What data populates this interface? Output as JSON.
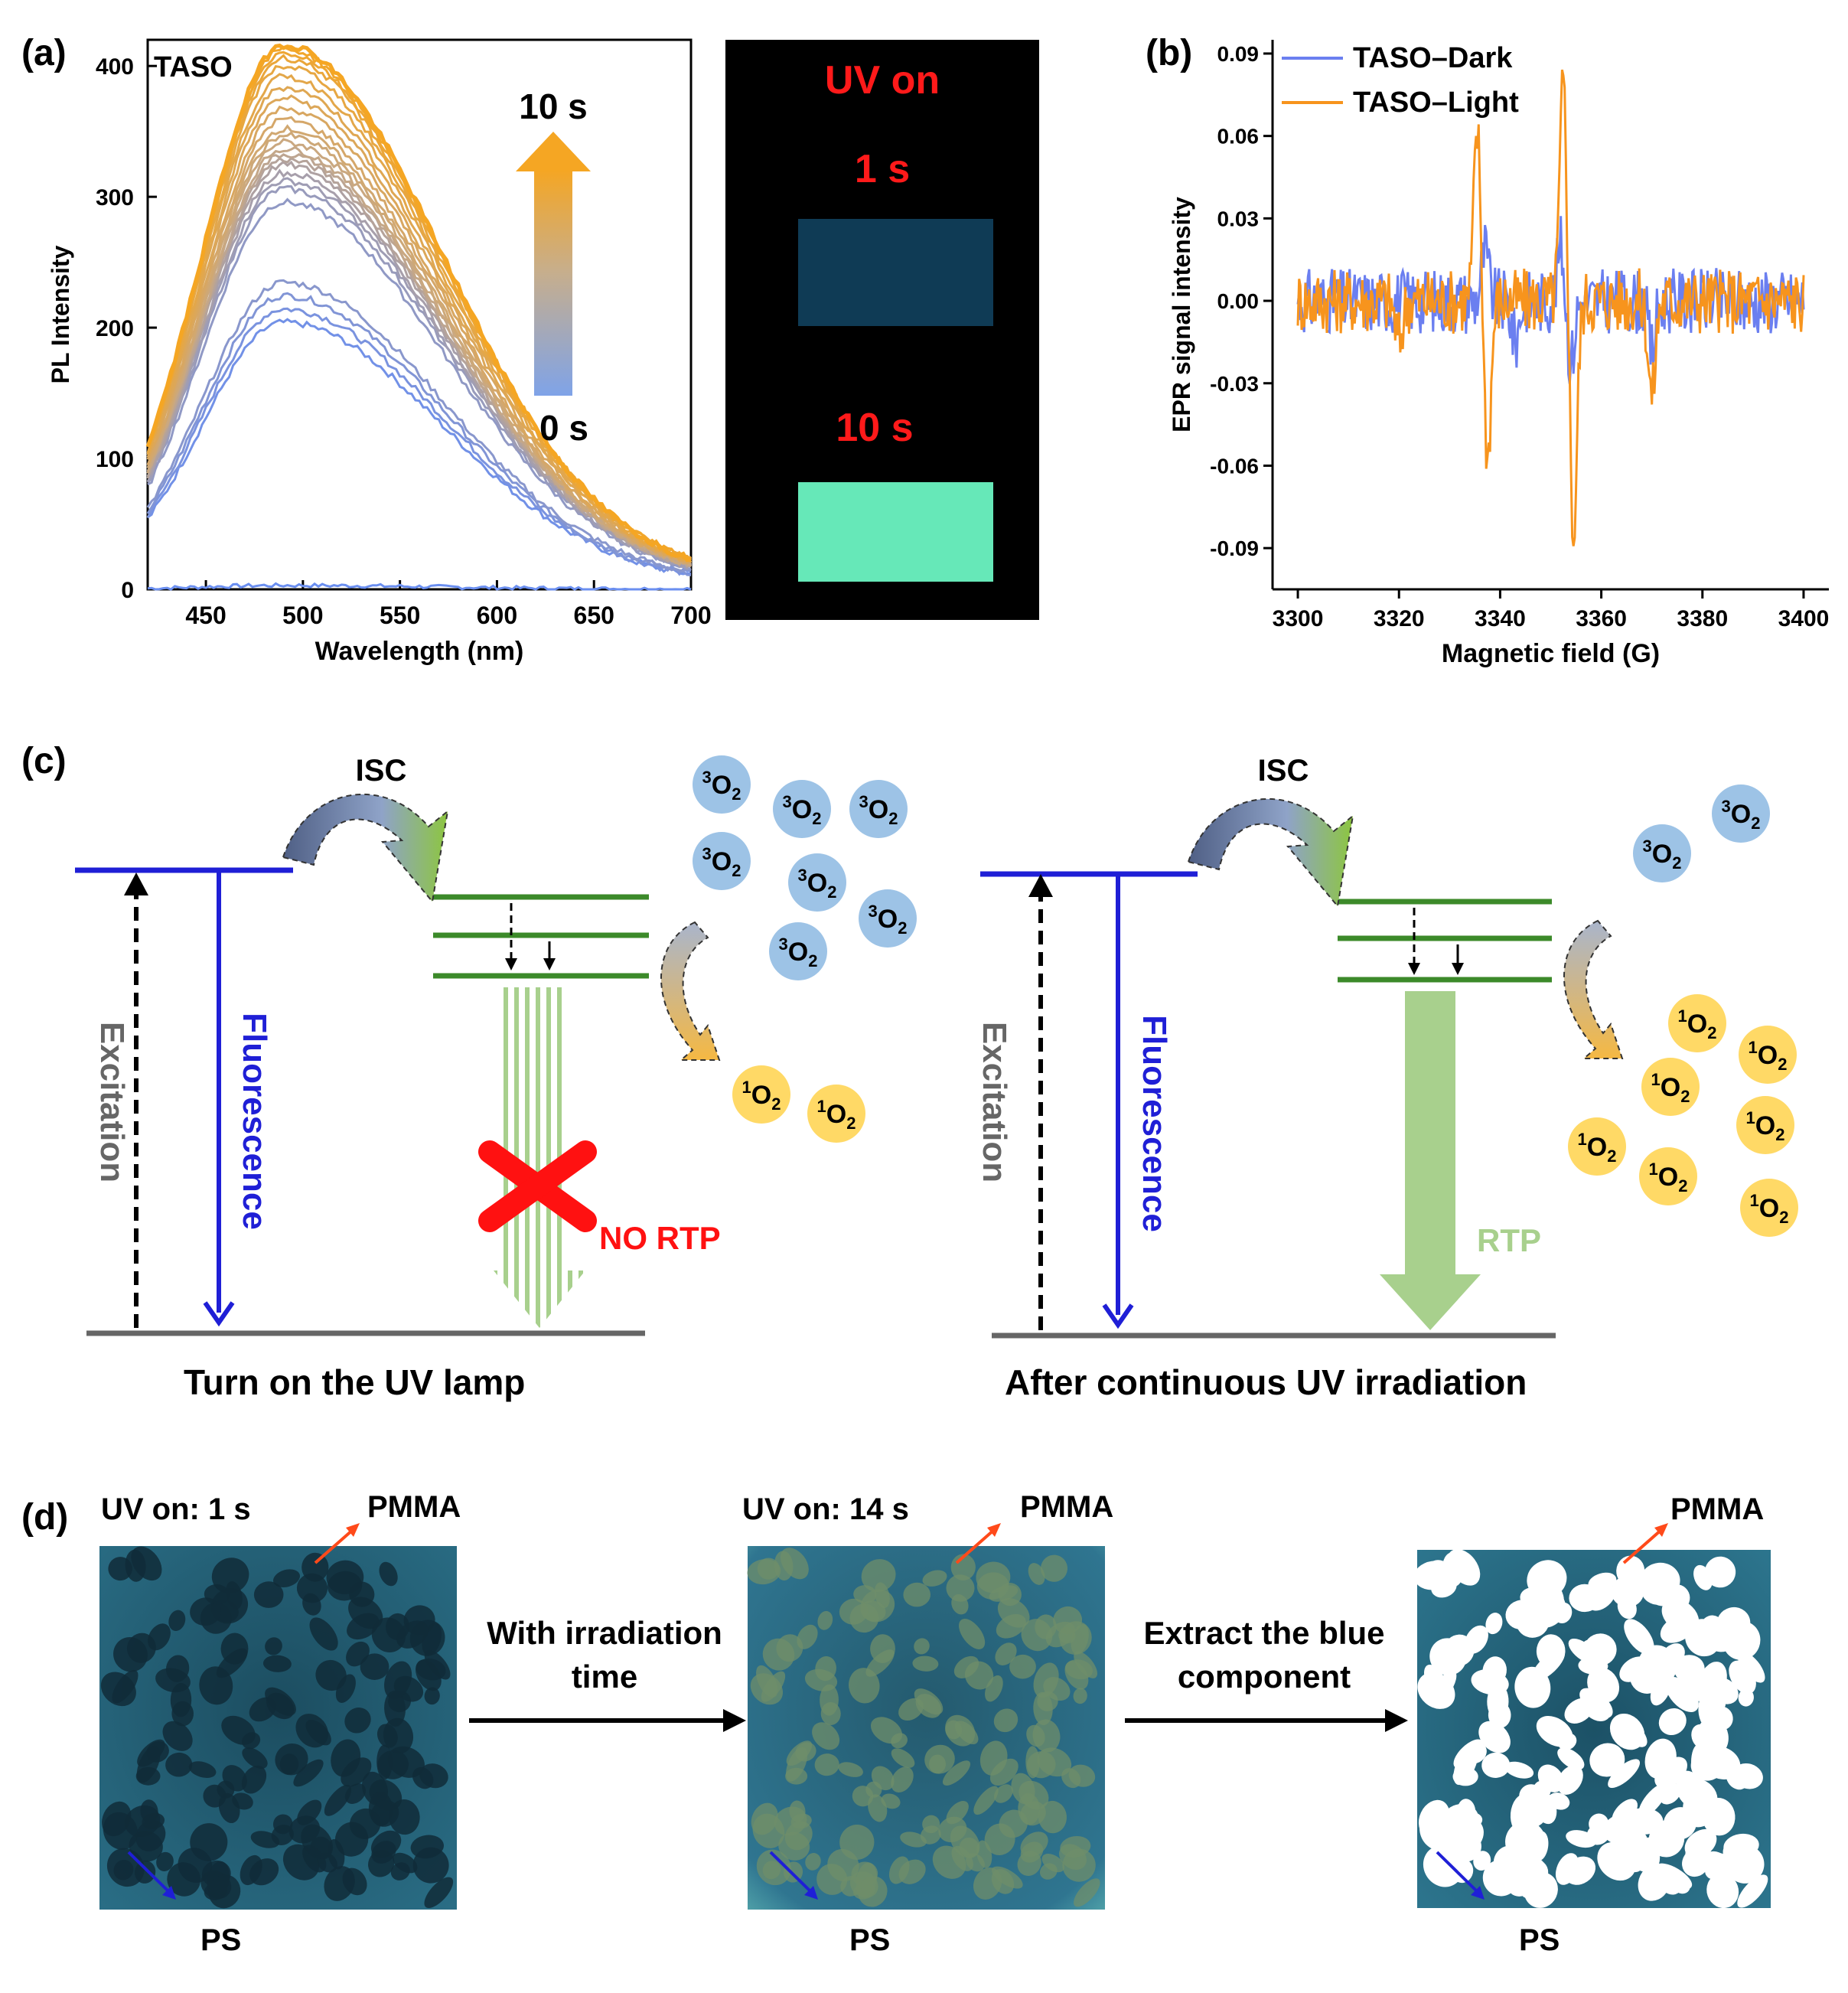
{
  "panels": {
    "a": {
      "label": "(a)"
    },
    "b": {
      "label": "(b)"
    },
    "c": {
      "label": "(c)"
    },
    "d": {
      "label": "(d)"
    }
  },
  "chart_data": [
    {
      "type": "line",
      "panel": "a",
      "sample": "TASO",
      "title": "",
      "xlabel": "Wavelength (nm)",
      "ylabel": "PL Intensity",
      "xlim": [
        420,
        700
      ],
      "ylim": [
        0,
        420
      ],
      "xticks": [
        "450",
        "500",
        "550",
        "600",
        "650",
        "700"
      ],
      "yticks": [
        "0",
        "100",
        "200",
        "300",
        "400"
      ],
      "arrow_top_label": "10 s",
      "arrow_bottom_label": "0 s",
      "series_shape": {
        "peak_nm": 490,
        "left_width_nm": 42,
        "right_width_nm": 82
      },
      "series_peaks": [
        3,
        200,
        210,
        220,
        230,
        290,
        300,
        306,
        312,
        318,
        322,
        326,
        330,
        335,
        340,
        345,
        352,
        360,
        368,
        376,
        384,
        392,
        398,
        402,
        405,
        408
      ],
      "colors": {
        "start": "#6b8ff0",
        "mid": "#c8a884",
        "end": "#f5a623"
      }
    },
    {
      "type": "line",
      "panel": "b",
      "title": "",
      "xlabel": "Magnetic field (G)",
      "ylabel": "EPR signal intensity",
      "xlim": [
        3295,
        3405
      ],
      "ylim": [
        -0.105,
        0.095
      ],
      "xticks": [
        "3300",
        "3320",
        "3340",
        "3360",
        "3380",
        "3400"
      ],
      "yticks": [
        "-0.09",
        "-0.06",
        "-0.03",
        "0.00",
        "0.03",
        "0.06",
        "0.09"
      ],
      "legend": [
        "TASO–Dark",
        "TASO–Light"
      ],
      "legend_position": "top-left",
      "series": [
        {
          "name": "TASO–Dark",
          "color": "#6b7ff0",
          "noise": 0.012,
          "features": [
            {
              "x": 3337,
              "a": 0.018
            },
            {
              "x": 3343,
              "a": -0.015
            },
            {
              "x": 3352,
              "a": 0.02
            },
            {
              "x": 3354,
              "a": -0.022
            },
            {
              "x": 3370,
              "a": -0.018
            }
          ]
        },
        {
          "name": "TASO–Light",
          "color": "#f7941d",
          "noise": 0.012,
          "features": [
            {
              "x": 3335.5,
              "a": 0.062
            },
            {
              "x": 3337.5,
              "a": -0.057
            },
            {
              "x": 3352.5,
              "a": 0.08
            },
            {
              "x": 3354.5,
              "a": -0.087
            },
            {
              "x": 3370,
              "a": -0.035
            },
            {
              "x": 3320,
              "a": -0.015
            }
          ]
        }
      ]
    }
  ],
  "photo_a": {
    "title": "UV on",
    "label_1": "1 s",
    "label_2": "10 s",
    "colors": {
      "dark_patch": "#0f3b55",
      "bright_patch": "#66e8b8",
      "text": "#ff1a1a"
    }
  },
  "diagram_c": {
    "left": {
      "isc": "ISC",
      "excitation": "Excitation",
      "fluorescence": "Fluorescence",
      "no_rtp": "NO RTP",
      "caption": "Turn on the UV lamp",
      "triplet_oxygen": [
        "3O2",
        "3O2",
        "3O2",
        "3O2",
        "3O2",
        "3O2",
        "3O2"
      ],
      "singlet_oxygen": [
        "1O2",
        "1O2"
      ]
    },
    "right": {
      "isc": "ISC",
      "excitation": "Excitation",
      "fluorescence": "Fluorescence",
      "rtp": "RTP",
      "caption": "After continuous UV irradiation",
      "triplet_oxygen": [
        "3O2",
        "3O2"
      ],
      "singlet_oxygen": [
        "1O2",
        "1O2",
        "1O2",
        "1O2",
        "1O2",
        "1O2",
        "1O2"
      ]
    },
    "colors": {
      "singlet_level": "#1f1fd6",
      "triplet_level": "#3c8a2a",
      "ground": "#666666",
      "rtp": "#a8d08d",
      "no_rtp_cross": "#ff1111",
      "o2_triplet": "#9dc3e6",
      "o2_singlet": "#ffd966"
    }
  },
  "panel_d": {
    "image1": {
      "label": "UV on: 1 s",
      "pmma": "PMMA",
      "ps": "PS"
    },
    "arrow1": {
      "line1": "With irradiation",
      "line2": "time"
    },
    "image2": {
      "label": "UV on: 14 s",
      "pmma": "PMMA",
      "ps": "PS"
    },
    "arrow2": {
      "line1": "Extract the blue",
      "line2": "component"
    },
    "image3": {
      "pmma": "PMMA",
      "ps": "PS"
    }
  }
}
